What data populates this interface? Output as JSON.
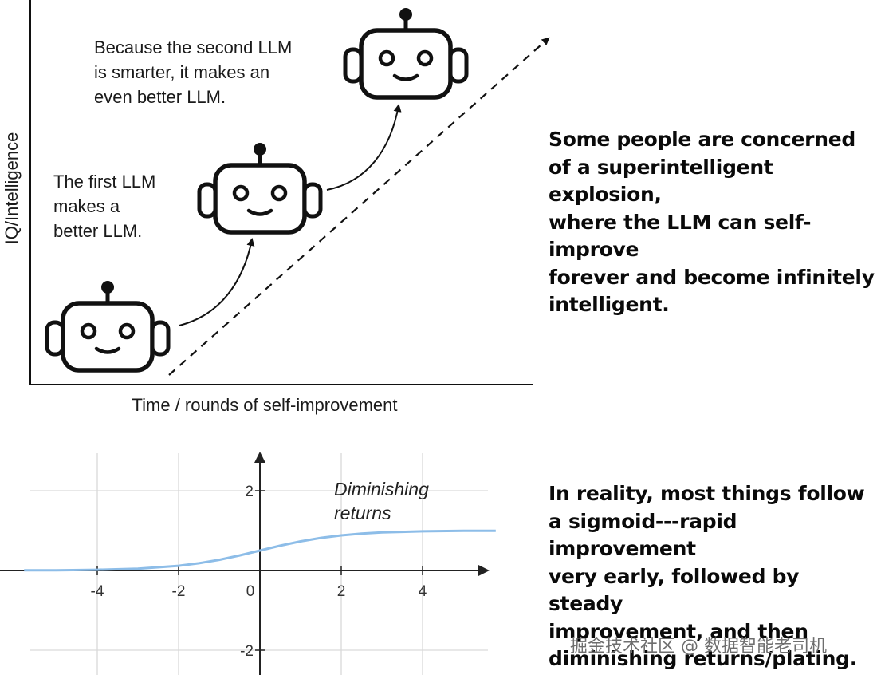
{
  "upper": {
    "y_axis_label": "IQ/Intelligence",
    "x_axis_label": "Time / rounds of self-improvement",
    "bubble_first": "The first LLM\nmakes a\nbetter LLM.",
    "bubble_second": "Because the second LLM\nis smarter, it makes an\neven better LLM.",
    "robot_icon": "robot-face-icon"
  },
  "claims": {
    "concern": "Some people are concerned\nof a superintelligent explosion,\nwhere the LLM can self-improve\nforever and become infinitely\nintelligent.",
    "reality": "In reality, most things follow\na sigmoid---rapid improvement\nvery early, followed by steady\nimprovement, and then\ndiminishing returns/plating."
  },
  "chart_data": {
    "type": "line",
    "series": [
      {
        "x": [
          -5.8,
          -5,
          -4,
          -3,
          -2,
          -1.5,
          -1,
          -0.5,
          0,
          0.5,
          1,
          1.5,
          2,
          2.5,
          3,
          4,
          5,
          5.8
        ],
        "y": [
          0.003,
          0.007,
          0.018,
          0.047,
          0.119,
          0.182,
          0.269,
          0.378,
          0.5,
          0.622,
          0.731,
          0.818,
          0.881,
          0.924,
          0.953,
          0.982,
          0.993,
          0.997
        ]
      }
    ],
    "x_ticks": [
      "-4",
      "-2",
      "0",
      "2",
      "4"
    ],
    "y_ticks": [
      "2",
      "-2"
    ],
    "xlim": [
      -5.8,
      5.8
    ],
    "ylim": [
      -2.5,
      3
    ],
    "grid": true,
    "annotation": "Diminishing\nreturns",
    "line_color": "#8dbde8"
  },
  "watermark": "掘金技术社区 @ 数据智能老司机"
}
